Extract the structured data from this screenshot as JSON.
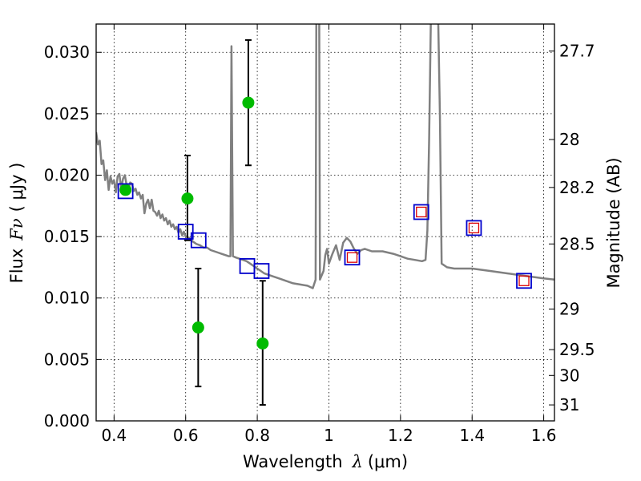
{
  "chart_data": {
    "type": "scatter",
    "xlabel_main": "Wavelength",
    "xlabel_symbol": "λ",
    "xlabel_unit": "(μm)",
    "ylabel_main": "Flux",
    "ylabel_symbol": "Fν",
    "ylabel_unit": "( μJy )",
    "y2label": "Magnitude (AB)",
    "xlim": [
      0.35,
      1.63
    ],
    "ylim": [
      0.0,
      0.0323
    ],
    "grid": true,
    "x_ticks": [
      {
        "value": 0.4,
        "label": "0.4"
      },
      {
        "value": 0.6,
        "label": "0.6"
      },
      {
        "value": 0.8,
        "label": "0.8"
      },
      {
        "value": 1.0,
        "label": "1"
      },
      {
        "value": 1.2,
        "label": "1.2"
      },
      {
        "value": 1.4,
        "label": "1.4"
      },
      {
        "value": 1.6,
        "label": "1.6"
      }
    ],
    "y_ticks": [
      {
        "value": 0.0,
        "label": "0.000"
      },
      {
        "value": 0.005,
        "label": "0.005"
      },
      {
        "value": 0.01,
        "label": "0.010"
      },
      {
        "value": 0.015,
        "label": "0.015"
      },
      {
        "value": 0.02,
        "label": "0.020"
      },
      {
        "value": 0.025,
        "label": "0.025"
      },
      {
        "value": 0.03,
        "label": "0.030"
      }
    ],
    "y2_ticks": [
      {
        "flux": 0.0301,
        "label": "27.7"
      },
      {
        "flux": 0.0229,
        "label": "28"
      },
      {
        "flux": 0.019,
        "label": "28.2"
      },
      {
        "flux": 0.0144,
        "label": "28.5"
      },
      {
        "flux": 0.0091,
        "label": "29"
      },
      {
        "flux": 0.0058,
        "label": "29.5"
      },
      {
        "flux": 0.0037,
        "label": "30"
      },
      {
        "flux": 0.0013,
        "label": "31"
      }
    ],
    "colors": {
      "model": "#808080",
      "observed": "#00bb00",
      "errorbar": "#000000",
      "model_photometry": "#0000cc",
      "model_photometry_inner": "#dd0000"
    },
    "model_spectrum": [
      [
        0.35,
        0.0235
      ],
      [
        0.355,
        0.0225
      ],
      [
        0.36,
        0.0228
      ],
      [
        0.365,
        0.0209
      ],
      [
        0.37,
        0.0212
      ],
      [
        0.375,
        0.0196
      ],
      [
        0.38,
        0.0204
      ],
      [
        0.385,
        0.0188
      ],
      [
        0.39,
        0.0199
      ],
      [
        0.395,
        0.0193
      ],
      [
        0.4,
        0.0196
      ],
      [
        0.405,
        0.0186
      ],
      [
        0.41,
        0.0199
      ],
      [
        0.415,
        0.0201
      ],
      [
        0.42,
        0.0189
      ],
      [
        0.425,
        0.0197
      ],
      [
        0.43,
        0.02
      ],
      [
        0.435,
        0.0192
      ],
      [
        0.44,
        0.0188
      ],
      [
        0.445,
        0.0194
      ],
      [
        0.45,
        0.0193
      ],
      [
        0.455,
        0.0187
      ],
      [
        0.46,
        0.0189
      ],
      [
        0.465,
        0.0184
      ],
      [
        0.47,
        0.0186
      ],
      [
        0.475,
        0.0181
      ],
      [
        0.48,
        0.0184
      ],
      [
        0.485,
        0.0169
      ],
      [
        0.49,
        0.0177
      ],
      [
        0.495,
        0.018
      ],
      [
        0.5,
        0.0173
      ],
      [
        0.505,
        0.018
      ],
      [
        0.51,
        0.0171
      ],
      [
        0.515,
        0.017
      ],
      [
        0.52,
        0.0167
      ],
      [
        0.525,
        0.0171
      ],
      [
        0.53,
        0.0165
      ],
      [
        0.535,
        0.0168
      ],
      [
        0.54,
        0.0163
      ],
      [
        0.545,
        0.0165
      ],
      [
        0.55,
        0.016
      ],
      [
        0.555,
        0.0163
      ],
      [
        0.56,
        0.0158
      ],
      [
        0.565,
        0.016
      ],
      [
        0.57,
        0.0156
      ],
      [
        0.575,
        0.0158
      ],
      [
        0.58,
        0.0153
      ],
      [
        0.585,
        0.0156
      ],
      [
        0.59,
        0.0151
      ],
      [
        0.595,
        0.0154
      ],
      [
        0.6,
        0.015
      ],
      [
        0.61,
        0.0149
      ],
      [
        0.62,
        0.0146
      ],
      [
        0.63,
        0.0144
      ],
      [
        0.64,
        0.0143
      ],
      [
        0.65,
        0.0141
      ],
      [
        0.66,
        0.0141
      ],
      [
        0.67,
        0.0139
      ],
      [
        0.68,
        0.0138
      ],
      [
        0.69,
        0.0137
      ],
      [
        0.7,
        0.0136
      ],
      [
        0.71,
        0.0135
      ],
      [
        0.72,
        0.0134
      ],
      [
        0.725,
        0.0134
      ],
      [
        0.728,
        0.0305
      ],
      [
        0.732,
        0.0134
      ],
      [
        0.74,
        0.0133
      ],
      [
        0.75,
        0.0132
      ],
      [
        0.76,
        0.0131
      ],
      [
        0.77,
        0.013
      ],
      [
        0.78,
        0.0128
      ],
      [
        0.79,
        0.0126
      ],
      [
        0.8,
        0.0124
      ],
      [
        0.82,
        0.012
      ],
      [
        0.84,
        0.0118
      ],
      [
        0.86,
        0.0116
      ],
      [
        0.88,
        0.0114
      ],
      [
        0.9,
        0.0112
      ],
      [
        0.92,
        0.0111
      ],
      [
        0.94,
        0.011
      ],
      [
        0.955,
        0.0108
      ],
      [
        0.963,
        0.0115
      ],
      [
        0.965,
        0.033
      ],
      [
        0.973,
        0.033
      ],
      [
        0.975,
        0.0115
      ],
      [
        0.985,
        0.0122
      ],
      [
        0.99,
        0.0135
      ],
      [
        0.995,
        0.014
      ],
      [
        1.0,
        0.0128
      ],
      [
        1.01,
        0.0136
      ],
      [
        1.02,
        0.0143
      ],
      [
        1.03,
        0.0131
      ],
      [
        1.04,
        0.0145
      ],
      [
        1.05,
        0.0149
      ],
      [
        1.06,
        0.0146
      ],
      [
        1.07,
        0.014
      ],
      [
        1.08,
        0.0136
      ],
      [
        1.09,
        0.0139
      ],
      [
        1.1,
        0.014
      ],
      [
        1.12,
        0.0138
      ],
      [
        1.15,
        0.0138
      ],
      [
        1.18,
        0.0136
      ],
      [
        1.2,
        0.0134
      ],
      [
        1.22,
        0.0132
      ],
      [
        1.24,
        0.0131
      ],
      [
        1.26,
        0.013
      ],
      [
        1.27,
        0.0131
      ],
      [
        1.275,
        0.0155
      ],
      [
        1.28,
        0.023
      ],
      [
        1.285,
        0.033
      ],
      [
        1.305,
        0.033
      ],
      [
        1.31,
        0.025
      ],
      [
        1.315,
        0.0128
      ],
      [
        1.33,
        0.0125
      ],
      [
        1.35,
        0.0124
      ],
      [
        1.4,
        0.0124
      ],
      [
        1.45,
        0.0122
      ],
      [
        1.5,
        0.012
      ],
      [
        1.55,
        0.0118
      ],
      [
        1.6,
        0.0116
      ],
      [
        1.63,
        0.0115
      ]
    ],
    "observed": [
      {
        "x": 0.432,
        "y": 0.0188,
        "yerr_low": null,
        "yerr_high": null
      },
      {
        "x": 0.605,
        "y": 0.0181,
        "yerr_low": 0.0147,
        "yerr_high": 0.0216
      },
      {
        "x": 0.635,
        "y": 0.0076,
        "yerr_low": 0.0028,
        "yerr_high": 0.0124
      },
      {
        "x": 0.775,
        "y": 0.0259,
        "yerr_low": 0.0208,
        "yerr_high": 0.031
      },
      {
        "x": 0.815,
        "y": 0.0063,
        "yerr_low": 0.0013,
        "yerr_high": 0.0114
      }
    ],
    "model_photometry": [
      {
        "x": 0.432,
        "y": 0.0187,
        "inner": false
      },
      {
        "x": 0.6,
        "y": 0.0154,
        "inner": false
      },
      {
        "x": 0.636,
        "y": 0.0147,
        "inner": false
      },
      {
        "x": 0.772,
        "y": 0.0126,
        "inner": false
      },
      {
        "x": 0.812,
        "y": 0.0122,
        "inner": false
      },
      {
        "x": 1.065,
        "y": 0.0133,
        "inner": true
      },
      {
        "x": 1.258,
        "y": 0.017,
        "inner": true
      },
      {
        "x": 1.405,
        "y": 0.0157,
        "inner": true
      },
      {
        "x": 1.545,
        "y": 0.0114,
        "inner": true
      }
    ]
  }
}
